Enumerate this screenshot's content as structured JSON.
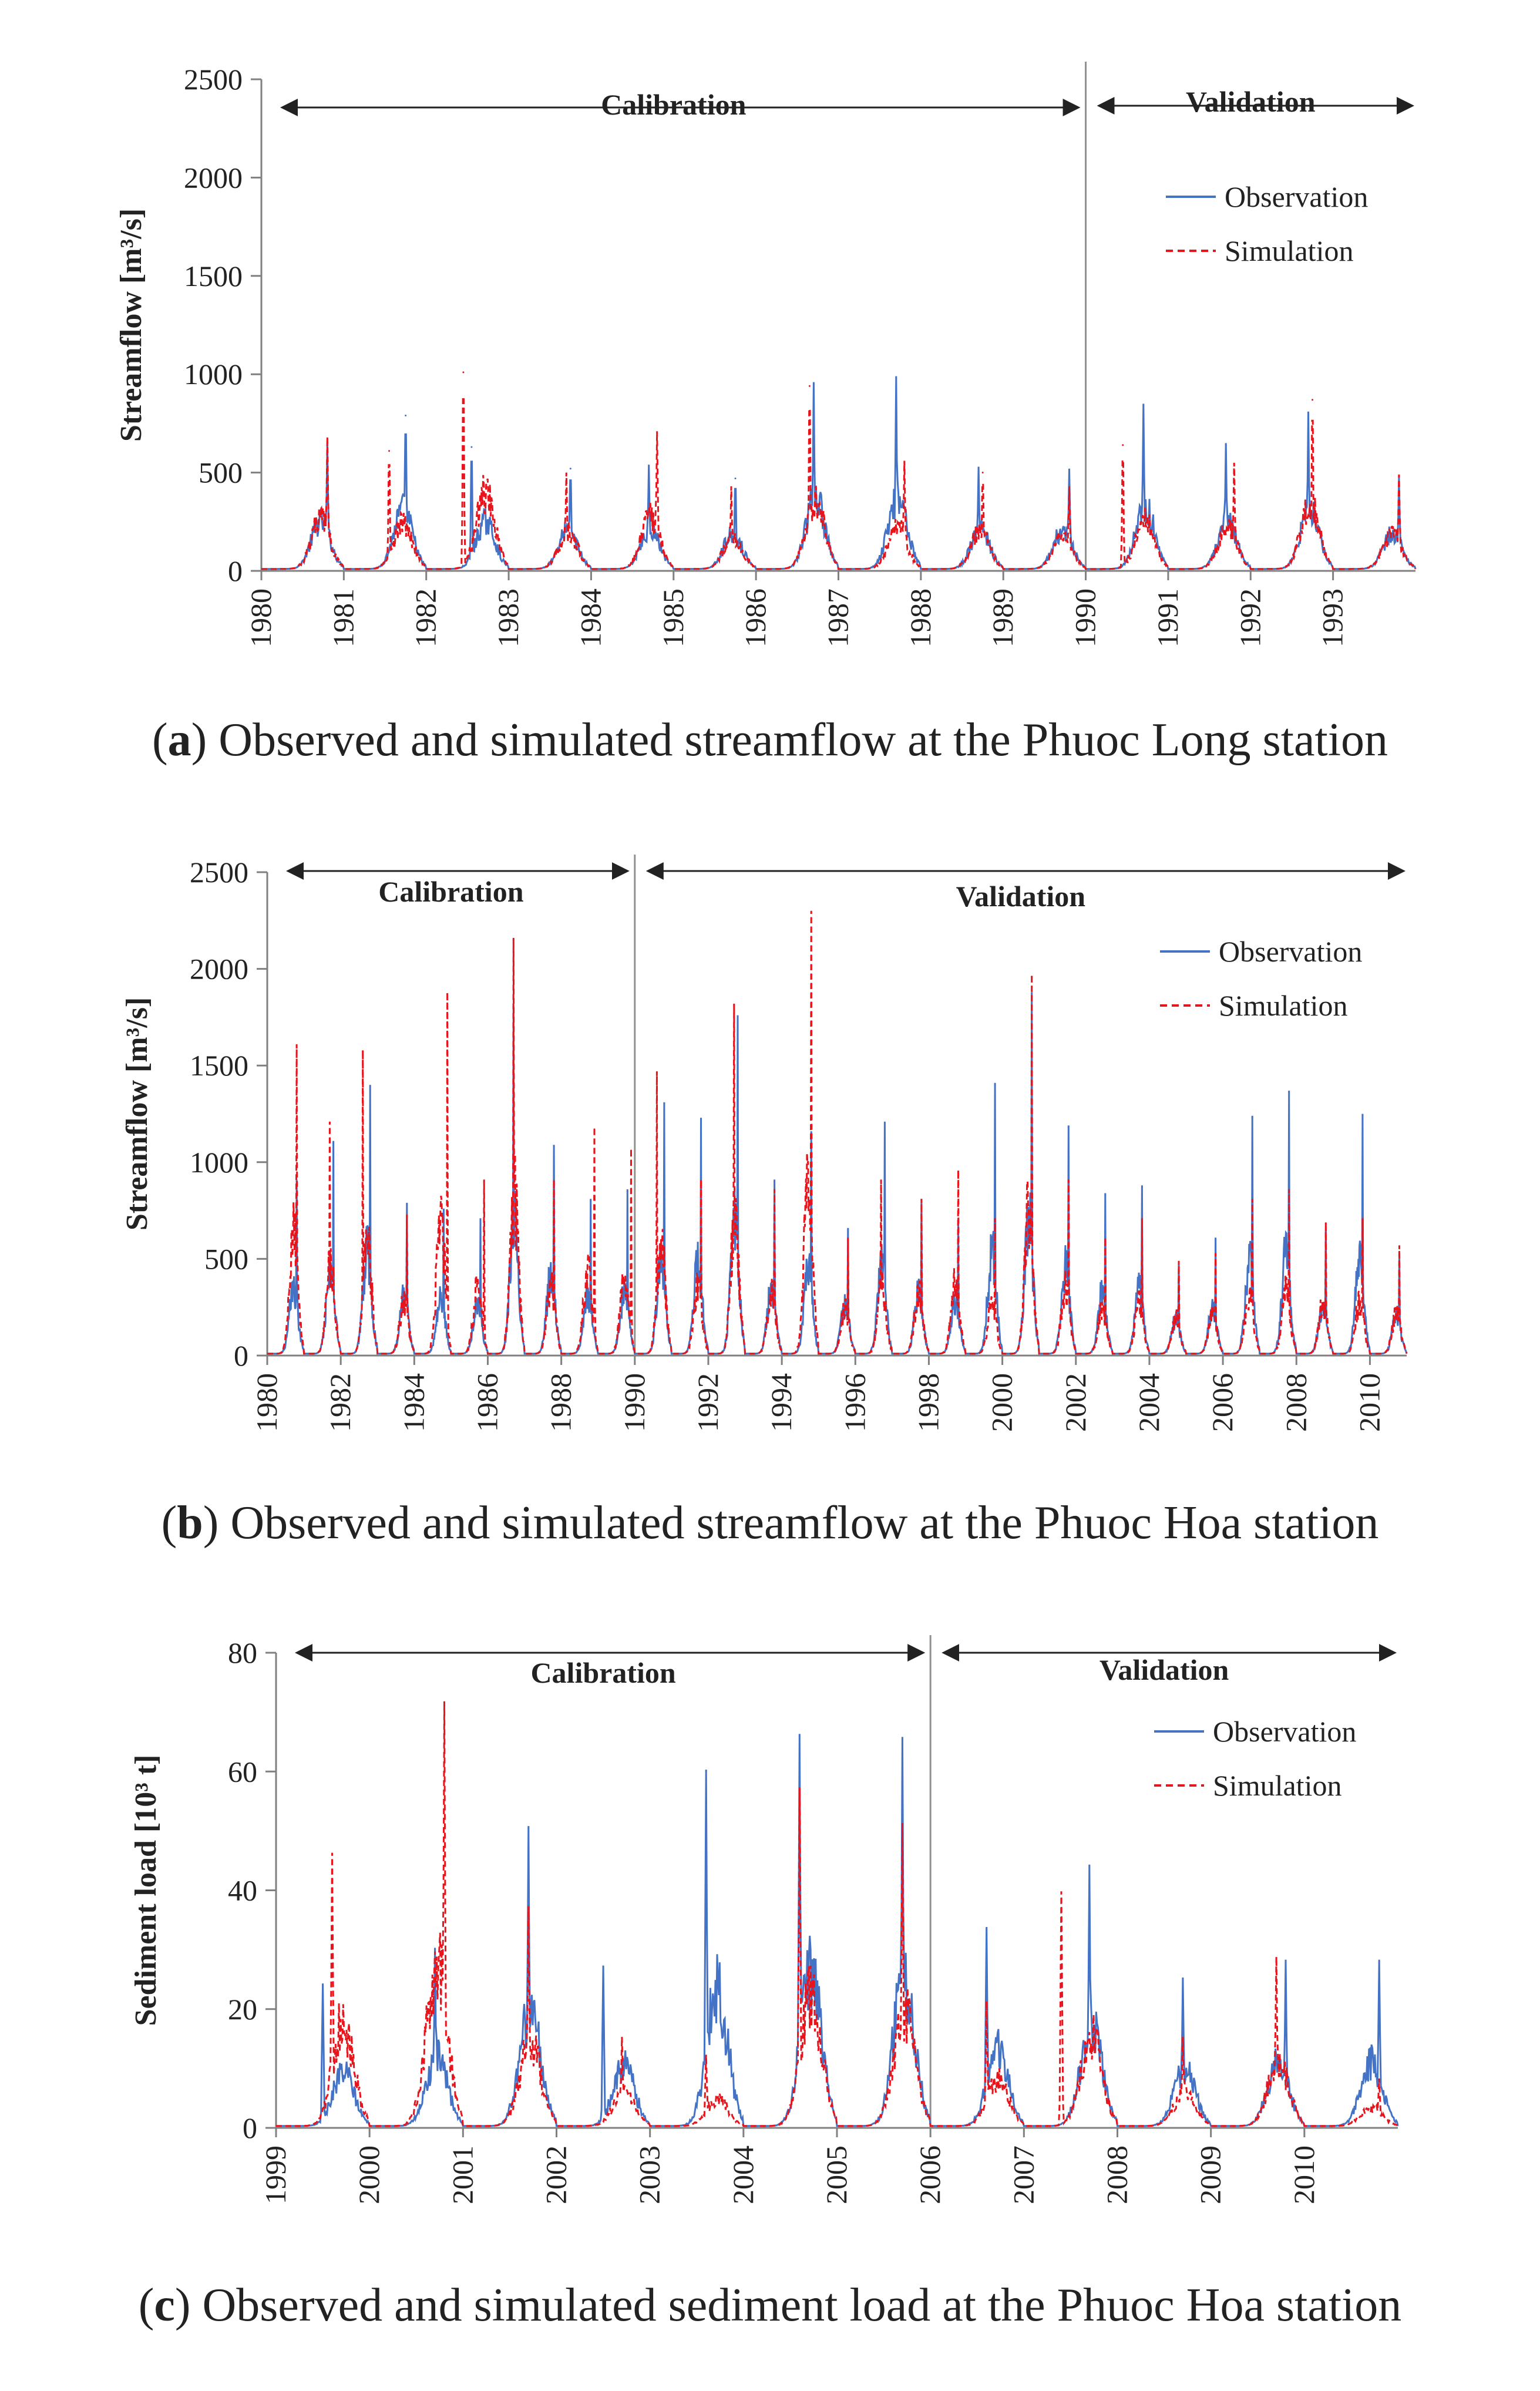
{
  "colors": {
    "observation": "#4472C4",
    "simulation": "#E8141C",
    "axis": "#808080",
    "text": "#222222"
  },
  "chart_data": [
    {
      "panel": "a",
      "type": "line",
      "ylabel": "Streamflow [m³/s]",
      "ylim": [
        0,
        2500
      ],
      "y_ticks": [
        0,
        500,
        1000,
        1500,
        2000,
        2500
      ],
      "x_ticks": [
        "1980",
        "1981",
        "1982",
        "1983",
        "1984",
        "1985",
        "1986",
        "1987",
        "1988",
        "1989",
        "1990",
        "1991",
        "1992",
        "1993"
      ],
      "x_range": [
        1980,
        1994
      ],
      "split_year": 1990,
      "calibration_label": "Calibration",
      "validation_label": "Validation",
      "legend": {
        "position": "right",
        "observation": "Observation",
        "simulation": "Simulation"
      },
      "series": [
        {
          "name": "Observation",
          "style": "solid",
          "peaks": [
            [
              1980.8,
              640
            ],
            [
              1981.75,
              790
            ],
            [
              1982.55,
              630
            ],
            [
              1983.75,
              520
            ],
            [
              1984.7,
              530
            ],
            [
              1985.75,
              470
            ],
            [
              1986.7,
              950
            ],
            [
              1987.7,
              980
            ],
            [
              1988.7,
              520
            ],
            [
              1989.8,
              510
            ],
            [
              1990.7,
              840
            ],
            [
              1991.7,
              640
            ],
            [
              1992.7,
              800
            ],
            [
              1993.8,
              470
            ]
          ]
        },
        {
          "name": "Simulation",
          "style": "dashed",
          "peaks": [
            [
              1980.8,
              670
            ],
            [
              1981.55,
              610
            ],
            [
              1982.45,
              1010
            ],
            [
              1983.7,
              490
            ],
            [
              1984.8,
              700
            ],
            [
              1985.7,
              420
            ],
            [
              1986.65,
              940
            ],
            [
              1987.8,
              550
            ],
            [
              1988.75,
              500
            ],
            [
              1989.8,
              420
            ],
            [
              1990.45,
              640
            ],
            [
              1991.8,
              540
            ],
            [
              1992.75,
              870
            ],
            [
              1993.8,
              480
            ]
          ]
        }
      ]
    },
    {
      "panel": "b",
      "type": "line",
      "ylabel": "Streamflow [m³/s]",
      "ylim": [
        0,
        2500
      ],
      "y_ticks": [
        0,
        500,
        1000,
        1500,
        2000,
        2500
      ],
      "x_ticks": [
        "1980",
        "1982",
        "1984",
        "1986",
        "1988",
        "1990",
        "1992",
        "1994",
        "1996",
        "1998",
        "2000",
        "2002",
        "2004",
        "2006",
        "2008",
        "2010"
      ],
      "x_range": [
        1980,
        2011
      ],
      "split_year": 1990,
      "calibration_label": "Calibration",
      "validation_label": "Validation",
      "legend": {
        "position": "right",
        "observation": "Observation",
        "simulation": "Simulation"
      },
      "series": [
        {
          "name": "Observation",
          "style": "solid",
          "peaks": [
            [
              1980.8,
              900
            ],
            [
              1981.8,
              1100
            ],
            [
              1982.8,
              1390
            ],
            [
              1983.8,
              780
            ],
            [
              1984.8,
              750
            ],
            [
              1985.8,
              700
            ],
            [
              1986.7,
              1800
            ],
            [
              1987.8,
              1080
            ],
            [
              1988.8,
              800
            ],
            [
              1989.8,
              850
            ],
            [
              1990.8,
              1300
            ],
            [
              1991.8,
              1220
            ],
            [
              1992.8,
              1750
            ],
            [
              1993.8,
              900
            ],
            [
              1994.8,
              1150
            ],
            [
              1995.8,
              650
            ],
            [
              1996.8,
              1200
            ],
            [
              1997.8,
              800
            ],
            [
              1998.8,
              700
            ],
            [
              1999.8,
              1400
            ],
            [
              2000.8,
              1870
            ],
            [
              2001.8,
              1180
            ],
            [
              2002.8,
              830
            ],
            [
              2003.8,
              870
            ],
            [
              2004.8,
              470
            ],
            [
              2005.8,
              600
            ],
            [
              2006.8,
              1230
            ],
            [
              2007.8,
              1360
            ],
            [
              2008.8,
              650
            ],
            [
              2009.8,
              1240
            ],
            [
              2010.8,
              520
            ]
          ]
        },
        {
          "name": "Simulation",
          "style": "dashed",
          "peaks": [
            [
              1980.8,
              1600
            ],
            [
              1981.7,
              1200
            ],
            [
              1982.6,
              1570
            ],
            [
              1983.8,
              720
            ],
            [
              1984.9,
              1870
            ],
            [
              1985.9,
              900
            ],
            [
              1986.7,
              2150
            ],
            [
              1987.8,
              900
            ],
            [
              1988.9,
              1170
            ],
            [
              1989.9,
              1060
            ],
            [
              1990.6,
              1460
            ],
            [
              1991.8,
              900
            ],
            [
              1992.7,
              1810
            ],
            [
              1993.8,
              850
            ],
            [
              1994.8,
              2290
            ],
            [
              1995.8,
              600
            ],
            [
              1996.7,
              900
            ],
            [
              1997.8,
              800
            ],
            [
              1998.8,
              950
            ],
            [
              1999.8,
              700
            ],
            [
              2000.8,
              1960
            ],
            [
              2001.8,
              900
            ],
            [
              2002.8,
              600
            ],
            [
              2003.8,
              700
            ],
            [
              2004.8,
              480
            ],
            [
              2005.8,
              520
            ],
            [
              2006.8,
              800
            ],
            [
              2007.8,
              850
            ],
            [
              2008.8,
              680
            ],
            [
              2009.8,
              700
            ],
            [
              2010.8,
              560
            ]
          ]
        }
      ]
    },
    {
      "panel": "c",
      "type": "line",
      "ylabel": "Sediment load [10³ t]",
      "ylim": [
        0,
        80
      ],
      "y_ticks": [
        0,
        20,
        40,
        60,
        80
      ],
      "x_ticks": [
        "1999",
        "2000",
        "2001",
        "2002",
        "2003",
        "2004",
        "2005",
        "2006",
        "2007",
        "2008",
        "2009",
        "2010"
      ],
      "x_range": [
        1999,
        2011
      ],
      "split_year": 2006,
      "calibration_label": "Calibration",
      "validation_label": "Validation",
      "legend": {
        "position": "right",
        "observation": "Observation",
        "simulation": "Simulation"
      },
      "series": [
        {
          "name": "Observation",
          "style": "solid",
          "peaks": [
            [
              1999.5,
              24
            ],
            [
              2000.7,
              30
            ],
            [
              2001.7,
              50.5
            ],
            [
              2002.5,
              27
            ],
            [
              2003.6,
              60
            ],
            [
              2004.6,
              66
            ],
            [
              2005.7,
              65.5
            ],
            [
              2006.6,
              33.5
            ],
            [
              2007.7,
              44
            ],
            [
              2008.7,
              25
            ],
            [
              2009.8,
              28
            ],
            [
              2010.8,
              28
            ]
          ]
        },
        {
          "name": "Simulation",
          "style": "dashed",
          "peaks": [
            [
              1999.6,
              46
            ],
            [
              2000.8,
              71.5
            ],
            [
              2001.7,
              37
            ],
            [
              2002.7,
              15
            ],
            [
              2003.6,
              12
            ],
            [
              2004.6,
              57
            ],
            [
              2005.7,
              51
            ],
            [
              2006.6,
              21
            ],
            [
              2007.4,
              39.5
            ],
            [
              2008.7,
              15
            ],
            [
              2009.7,
              28.5
            ],
            [
              2010.8,
              8
            ]
          ]
        }
      ]
    }
  ],
  "captions": [
    {
      "letter": "a",
      "text": "Observed and simulated streamflow at the Phuoc Long station"
    },
    {
      "letter": "b",
      "text": "Observed and simulated streamflow at the Phuoc Hoa station"
    },
    {
      "letter": "c",
      "text": "Observed and simulated sediment load at the Phuoc Hoa station"
    }
  ]
}
